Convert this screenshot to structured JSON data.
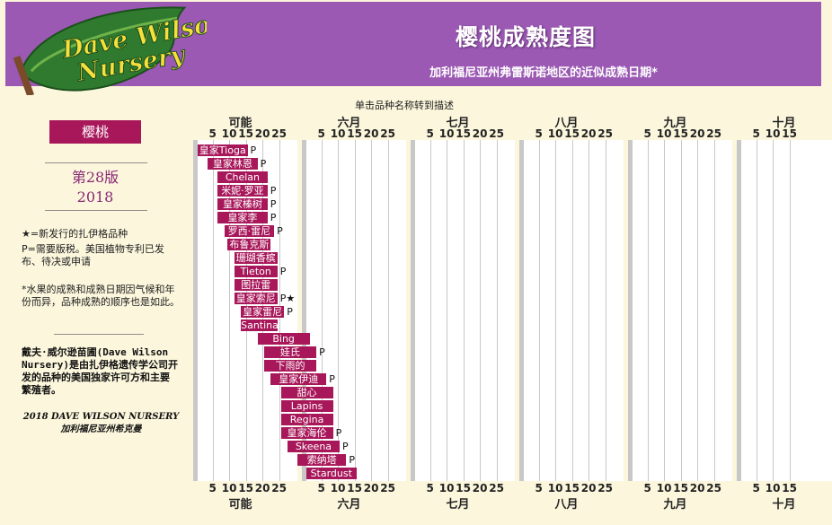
{
  "header": {
    "logo_text": "Dave Wilson Nursery",
    "title": "樱桃成熟度图",
    "subtitle": "加利福尼亚州弗雷斯诺地区的近似成熟日期*"
  },
  "click_hint": "单击品种名称转到描述",
  "sidebar": {
    "tab_label": "樱桃",
    "edition": "第28版",
    "year": "2018",
    "notes": [
      "★=新发行的扎伊格品种",
      "P=需要版税。美国植物专利已发布、待决或申请",
      "*水果的成熟和成熟日期因气候和年份而异，品种成熟的顺序也是如此。"
    ],
    "wilson_note": "戴夫·威尔逊苗圃(Dave Wilson Nursery)是由扎伊格遗传学公司开发的品种的美国独家许可方和主要繁殖者。",
    "copyright_line1": "2018 DAVE WILSON NURSERY",
    "copyright_line2": "加利福尼亚州希克曼"
  },
  "chart_data": {
    "type": "gantt",
    "months": [
      "可能",
      "六月",
      "七月",
      "八月",
      "九月",
      "十月"
    ],
    "ticks": [
      [
        "5",
        "10",
        "15",
        "20",
        "25"
      ],
      [
        "5",
        "10",
        "15",
        "20",
        "25"
      ],
      [
        "5",
        "10",
        "15",
        "20",
        "25"
      ],
      [
        "5",
        "10",
        "15",
        "20",
        "25"
      ],
      [
        "5",
        "10",
        "15",
        "20",
        "25"
      ],
      [
        "5",
        "10",
        "15"
      ]
    ],
    "varieties": [
      {
        "name": "皇家Tioga",
        "start": "05-01",
        "end": "05-15",
        "flag": "P"
      },
      {
        "name": "皇家林恩",
        "start": "05-04",
        "end": "05-18",
        "flag": "P"
      },
      {
        "name": "Chelan",
        "start": "05-07",
        "end": "05-21",
        "flag": ""
      },
      {
        "name": "米妮·罗亚",
        "start": "05-07",
        "end": "05-21",
        "flag": "P"
      },
      {
        "name": "皇家榛树",
        "start": "05-07",
        "end": "05-21",
        "flag": "P"
      },
      {
        "name": "皇家李",
        "start": "05-07",
        "end": "05-21",
        "flag": "P"
      },
      {
        "name": "罗西·雷尼",
        "start": "05-09",
        "end": "05-23",
        "flag": "P"
      },
      {
        "name": "布鲁克斯",
        "start": "05-10",
        "end": "05-22",
        "flag": ""
      },
      {
        "name": "珊瑚香槟",
        "start": "05-12",
        "end": "05-24",
        "flag": ""
      },
      {
        "name": "Tieton",
        "start": "05-12",
        "end": "05-24",
        "flag": "P"
      },
      {
        "name": "图拉雷",
        "start": "05-12",
        "end": "05-24",
        "flag": ""
      },
      {
        "name": "皇家索尼",
        "start": "05-12",
        "end": "05-24",
        "flag": "P★"
      },
      {
        "name": "皇家雷尼",
        "start": "05-14",
        "end": "05-26",
        "flag": "P"
      },
      {
        "name": "Santina",
        "start": "05-14",
        "end": "05-24",
        "flag": ""
      },
      {
        "name": "Bing",
        "start": "05-19",
        "end": "06-01",
        "flag": ""
      },
      {
        "name": "娃氏",
        "start": "05-21",
        "end": "06-03",
        "flag": "P"
      },
      {
        "name": "下雨的",
        "start": "05-21",
        "end": "06-03",
        "flag": ""
      },
      {
        "name": "皇家伊迪",
        "start": "05-23",
        "end": "06-06",
        "flag": "P"
      },
      {
        "name": "甜心",
        "start": "05-26",
        "end": "06-08",
        "flag": ""
      },
      {
        "name": "Lapins",
        "start": "05-26",
        "end": "06-08",
        "flag": ""
      },
      {
        "name": "Regina",
        "start": "05-26",
        "end": "06-08",
        "flag": ""
      },
      {
        "name": "皇家海伦",
        "start": "05-26",
        "end": "06-08",
        "flag": "P"
      },
      {
        "name": "Skeena",
        "start": "05-28",
        "end": "06-10",
        "flag": "P"
      },
      {
        "name": "索纳塔",
        "start": "05-31",
        "end": "06-12",
        "flag": "P"
      },
      {
        "name": "Stardust",
        "start": "06-01",
        "end": "06-15",
        "flag": ""
      }
    ]
  }
}
